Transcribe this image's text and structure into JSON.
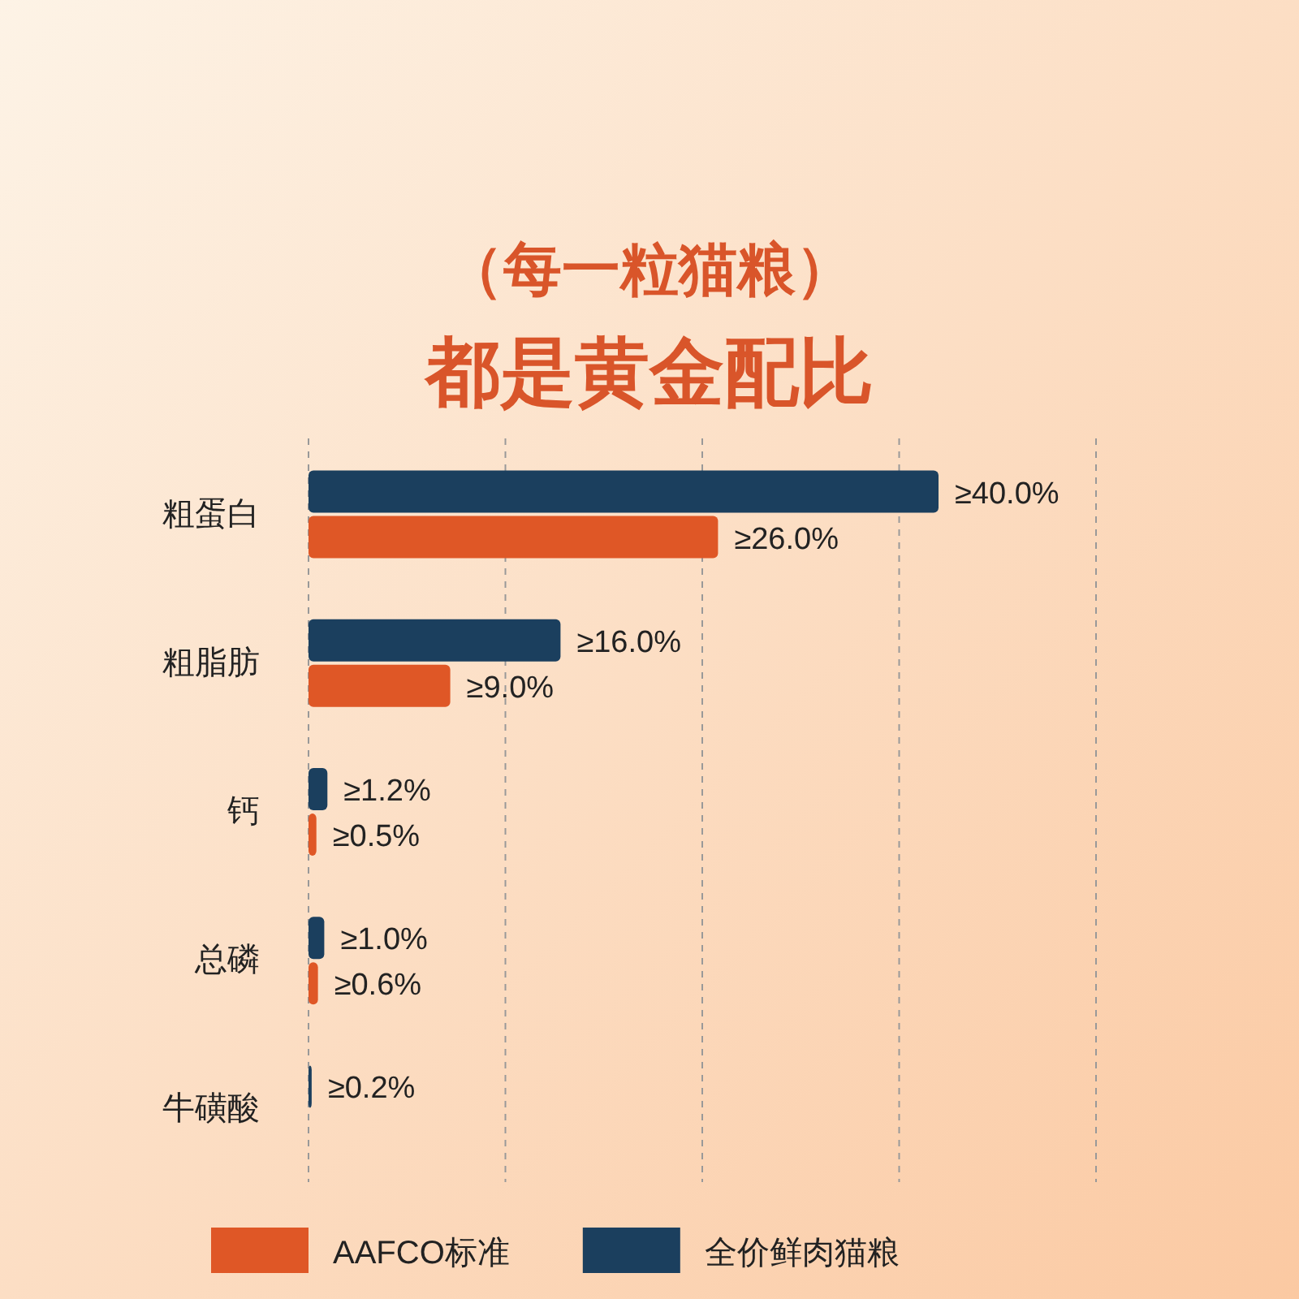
{
  "chart_data": {
    "type": "bar",
    "orientation": "horizontal",
    "title": "（每一粒猫粮）",
    "subtitle": "都是黄金配比",
    "categories": [
      "粗蛋白",
      "粗脂肪",
      "钙",
      "总磷",
      "牛磺酸"
    ],
    "series": [
      {
        "name": "全价鲜肉猫粮",
        "color": "#1b3f5e",
        "values": [
          40.0,
          16.0,
          1.2,
          1.0,
          0.2
        ],
        "value_labels": [
          "≥40.0%",
          "≥16.0%",
          "≥1.2%",
          "≥1.0%",
          "≥0.2%"
        ]
      },
      {
        "name": "AAFCO标准",
        "color": "#df5726",
        "values": [
          26.0,
          9.0,
          0.5,
          0.6,
          null
        ],
        "value_labels": [
          "≥26.0%",
          "≥9.0%",
          "≥0.5%",
          "≥0.6%",
          null
        ]
      }
    ],
    "xlim": [
      0,
      50
    ],
    "xticks": [
      {
        "value": 12.5,
        "label": null
      },
      {
        "value": 25,
        "label": null
      },
      {
        "value": 37.5,
        "label": null
      },
      {
        "value": 50,
        "label": null
      }
    ],
    "grid": "x",
    "legend": "bottom"
  }
}
